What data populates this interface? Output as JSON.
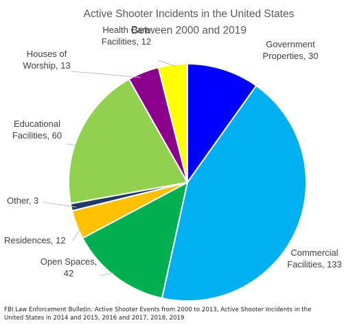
{
  "chart_data": {
    "type": "pie",
    "title_lines": [
      "Active Shooter Incidents in the United States",
      "Between 2000 and 2019"
    ],
    "slices": [
      {
        "name": "Government Properties",
        "value": 30,
        "color": "#0000ff",
        "label_lines": [
          "Government",
          "Properties, 30"
        ]
      },
      {
        "name": "Commercial Facilities",
        "value": 133,
        "color": "#00b0f0",
        "label_lines": [
          "Commercial",
          "Facilities, 133"
        ]
      },
      {
        "name": "Open Spaces",
        "value": 42,
        "color": "#00b050",
        "label_lines": [
          "Open Spaces,",
          "42"
        ]
      },
      {
        "name": "Residences",
        "value": 12,
        "color": "#ffc000",
        "label_lines": [
          "Residences, 12"
        ]
      },
      {
        "name": "Other",
        "value": 3,
        "color": "#1f3864",
        "label_lines": [
          "Other, 3"
        ]
      },
      {
        "name": "Educational Facilities",
        "value": 60,
        "color": "#92d050",
        "label_lines": [
          "Educational",
          "Facilities, 60"
        ]
      },
      {
        "name": "Houses of Worship",
        "value": 13,
        "color": "#8b008b",
        "label_lines": [
          "Houses of",
          "Worship, 13"
        ]
      },
      {
        "name": "Health Care Facilities",
        "value": 12,
        "color": "#ffff00",
        "label_lines": [
          "Health Care",
          "Facilities, 12"
        ]
      }
    ],
    "source_lines": [
      "FBI Law Enforcement Bulletin. Active Shooter Events from 2000 to 2013, Active Shooter Incidents in the",
      "United States in 2014 and 2015, 2016 and 2017, 2018, 2019"
    ]
  }
}
